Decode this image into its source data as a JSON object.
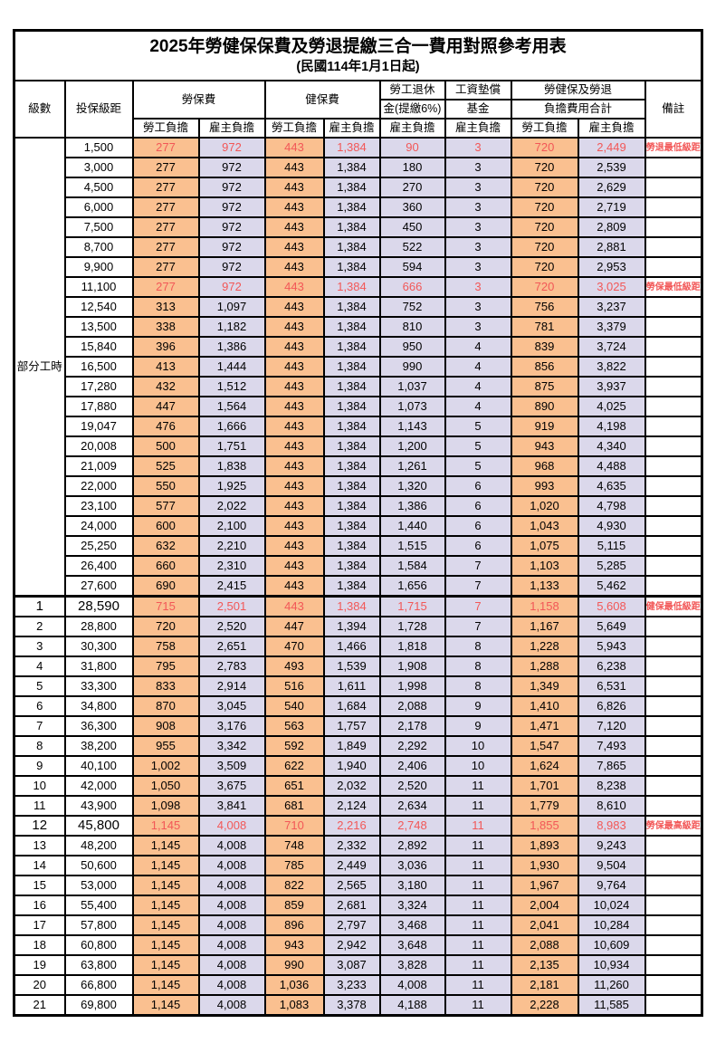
{
  "title": "2025年勞健保保費及勞退提繳三合一費用對照參考用表",
  "subtitle": "(民國114年1月1日起)",
  "columns": {
    "level": "級數",
    "bracket": "投保級距",
    "labor_fee": "勞保費",
    "health_fee": "健保費",
    "pension_line1": "勞工退休",
    "pension_line2": "金(提繳6%)",
    "wage_fund_line1": "工資墊償",
    "wage_fund_line2": "基金",
    "total_line1": "勞健保及勞退",
    "total_line2": "負擔費用合計",
    "remark": "備註",
    "employee_label": "勞工負擔",
    "employer_label": "雇主負擔"
  },
  "part_time_label": "部分工時",
  "colors": {
    "employee_bg": "#FAC090",
    "employer_bg": "#DBD8EB",
    "highlight_text": "#F25757"
  },
  "rows": [
    {
      "level": "",
      "bracket": "1,500",
      "values": [
        "277",
        "972",
        "443",
        "1,384",
        "90",
        "3",
        "720",
        "2,449"
      ],
      "remark": "勞退最低級距",
      "highlight": true,
      "emphasis": false
    },
    {
      "level": "",
      "bracket": "3,000",
      "values": [
        "277",
        "972",
        "443",
        "1,384",
        "180",
        "3",
        "720",
        "2,539"
      ],
      "remark": "",
      "highlight": false,
      "emphasis": false
    },
    {
      "level": "",
      "bracket": "4,500",
      "values": [
        "277",
        "972",
        "443",
        "1,384",
        "270",
        "3",
        "720",
        "2,629"
      ],
      "remark": "",
      "highlight": false,
      "emphasis": false
    },
    {
      "level": "",
      "bracket": "6,000",
      "values": [
        "277",
        "972",
        "443",
        "1,384",
        "360",
        "3",
        "720",
        "2,719"
      ],
      "remark": "",
      "highlight": false,
      "emphasis": false
    },
    {
      "level": "",
      "bracket": "7,500",
      "values": [
        "277",
        "972",
        "443",
        "1,384",
        "450",
        "3",
        "720",
        "2,809"
      ],
      "remark": "",
      "highlight": false,
      "emphasis": false
    },
    {
      "level": "",
      "bracket": "8,700",
      "values": [
        "277",
        "972",
        "443",
        "1,384",
        "522",
        "3",
        "720",
        "2,881"
      ],
      "remark": "",
      "highlight": false,
      "emphasis": false
    },
    {
      "level": "",
      "bracket": "9,900",
      "values": [
        "277",
        "972",
        "443",
        "1,384",
        "594",
        "3",
        "720",
        "2,953"
      ],
      "remark": "",
      "highlight": false,
      "emphasis": false
    },
    {
      "level": "",
      "bracket": "11,100",
      "values": [
        "277",
        "972",
        "443",
        "1,384",
        "666",
        "3",
        "720",
        "3,025"
      ],
      "remark": "勞保最低級距",
      "highlight": true,
      "emphasis": false
    },
    {
      "level": "",
      "bracket": "12,540",
      "values": [
        "313",
        "1,097",
        "443",
        "1,384",
        "752",
        "3",
        "756",
        "3,237"
      ],
      "remark": "",
      "highlight": false,
      "emphasis": false
    },
    {
      "level": "",
      "bracket": "13,500",
      "values": [
        "338",
        "1,182",
        "443",
        "1,384",
        "810",
        "3",
        "781",
        "3,379"
      ],
      "remark": "",
      "highlight": false,
      "emphasis": false
    },
    {
      "level": "",
      "bracket": "15,840",
      "values": [
        "396",
        "1,386",
        "443",
        "1,384",
        "950",
        "4",
        "839",
        "3,724"
      ],
      "remark": "",
      "highlight": false,
      "emphasis": false
    },
    {
      "level": "",
      "bracket": "16,500",
      "values": [
        "413",
        "1,444",
        "443",
        "1,384",
        "990",
        "4",
        "856",
        "3,822"
      ],
      "remark": "",
      "highlight": false,
      "emphasis": false
    },
    {
      "level": "",
      "bracket": "17,280",
      "values": [
        "432",
        "1,512",
        "443",
        "1,384",
        "1,037",
        "4",
        "875",
        "3,937"
      ],
      "remark": "",
      "highlight": false,
      "emphasis": false
    },
    {
      "level": "",
      "bracket": "17,880",
      "values": [
        "447",
        "1,564",
        "443",
        "1,384",
        "1,073",
        "4",
        "890",
        "4,025"
      ],
      "remark": "",
      "highlight": false,
      "emphasis": false
    },
    {
      "level": "",
      "bracket": "19,047",
      "values": [
        "476",
        "1,666",
        "443",
        "1,384",
        "1,143",
        "5",
        "919",
        "4,198"
      ],
      "remark": "",
      "highlight": false,
      "emphasis": false
    },
    {
      "level": "",
      "bracket": "20,008",
      "values": [
        "500",
        "1,751",
        "443",
        "1,384",
        "1,200",
        "5",
        "943",
        "4,340"
      ],
      "remark": "",
      "highlight": false,
      "emphasis": false
    },
    {
      "level": "",
      "bracket": "21,009",
      "values": [
        "525",
        "1,838",
        "443",
        "1,384",
        "1,261",
        "5",
        "968",
        "4,488"
      ],
      "remark": "",
      "highlight": false,
      "emphasis": false
    },
    {
      "level": "",
      "bracket": "22,000",
      "values": [
        "550",
        "1,925",
        "443",
        "1,384",
        "1,320",
        "6",
        "993",
        "4,635"
      ],
      "remark": "",
      "highlight": false,
      "emphasis": false
    },
    {
      "level": "",
      "bracket": "23,100",
      "values": [
        "577",
        "2,022",
        "443",
        "1,384",
        "1,386",
        "6",
        "1,020",
        "4,798"
      ],
      "remark": "",
      "highlight": false,
      "emphasis": false
    },
    {
      "level": "",
      "bracket": "24,000",
      "values": [
        "600",
        "2,100",
        "443",
        "1,384",
        "1,440",
        "6",
        "1,043",
        "4,930"
      ],
      "remark": "",
      "highlight": false,
      "emphasis": false
    },
    {
      "level": "",
      "bracket": "25,250",
      "values": [
        "632",
        "2,210",
        "443",
        "1,384",
        "1,515",
        "6",
        "1,075",
        "5,115"
      ],
      "remark": "",
      "highlight": false,
      "emphasis": false
    },
    {
      "level": "",
      "bracket": "26,400",
      "values": [
        "660",
        "2,310",
        "443",
        "1,384",
        "1,584",
        "7",
        "1,103",
        "5,285"
      ],
      "remark": "",
      "highlight": false,
      "emphasis": false
    },
    {
      "level": "",
      "bracket": "27,600",
      "values": [
        "690",
        "2,415",
        "443",
        "1,384",
        "1,656",
        "7",
        "1,133",
        "5,462"
      ],
      "remark": "",
      "highlight": false,
      "emphasis": false
    },
    {
      "level": "1",
      "bracket": "28,590",
      "values": [
        "715",
        "2,501",
        "443",
        "1,384",
        "1,715",
        "7",
        "1,158",
        "5,608"
      ],
      "remark": "健保最低級距",
      "highlight": true,
      "emphasis": true
    },
    {
      "level": "2",
      "bracket": "28,800",
      "values": [
        "720",
        "2,520",
        "447",
        "1,394",
        "1,728",
        "7",
        "1,167",
        "5,649"
      ],
      "remark": "",
      "highlight": false,
      "emphasis": false
    },
    {
      "level": "3",
      "bracket": "30,300",
      "values": [
        "758",
        "2,651",
        "470",
        "1,466",
        "1,818",
        "8",
        "1,228",
        "5,943"
      ],
      "remark": "",
      "highlight": false,
      "emphasis": false
    },
    {
      "level": "4",
      "bracket": "31,800",
      "values": [
        "795",
        "2,783",
        "493",
        "1,539",
        "1,908",
        "8",
        "1,288",
        "6,238"
      ],
      "remark": "",
      "highlight": false,
      "emphasis": false
    },
    {
      "level": "5",
      "bracket": "33,300",
      "values": [
        "833",
        "2,914",
        "516",
        "1,611",
        "1,998",
        "8",
        "1,349",
        "6,531"
      ],
      "remark": "",
      "highlight": false,
      "emphasis": false
    },
    {
      "level": "6",
      "bracket": "34,800",
      "values": [
        "870",
        "3,045",
        "540",
        "1,684",
        "2,088",
        "9",
        "1,410",
        "6,826"
      ],
      "remark": "",
      "highlight": false,
      "emphasis": false
    },
    {
      "level": "7",
      "bracket": "36,300",
      "values": [
        "908",
        "3,176",
        "563",
        "1,757",
        "2,178",
        "9",
        "1,471",
        "7,120"
      ],
      "remark": "",
      "highlight": false,
      "emphasis": false
    },
    {
      "level": "8",
      "bracket": "38,200",
      "values": [
        "955",
        "3,342",
        "592",
        "1,849",
        "2,292",
        "10",
        "1,547",
        "7,493"
      ],
      "remark": "",
      "highlight": false,
      "emphasis": false
    },
    {
      "level": "9",
      "bracket": "40,100",
      "values": [
        "1,002",
        "3,509",
        "622",
        "1,940",
        "2,406",
        "10",
        "1,624",
        "7,865"
      ],
      "remark": "",
      "highlight": false,
      "emphasis": false
    },
    {
      "level": "10",
      "bracket": "42,000",
      "values": [
        "1,050",
        "3,675",
        "651",
        "2,032",
        "2,520",
        "11",
        "1,701",
        "8,238"
      ],
      "remark": "",
      "highlight": false,
      "emphasis": false
    },
    {
      "level": "11",
      "bracket": "43,900",
      "values": [
        "1,098",
        "3,841",
        "681",
        "2,124",
        "2,634",
        "11",
        "1,779",
        "8,610"
      ],
      "remark": "",
      "highlight": false,
      "emphasis": false
    },
    {
      "level": "12",
      "bracket": "45,800",
      "values": [
        "1,145",
        "4,008",
        "710",
        "2,216",
        "2,748",
        "11",
        "1,855",
        "8,983"
      ],
      "remark": "勞保最高級距",
      "highlight": true,
      "emphasis": true
    },
    {
      "level": "13",
      "bracket": "48,200",
      "values": [
        "1,145",
        "4,008",
        "748",
        "2,332",
        "2,892",
        "11",
        "1,893",
        "9,243"
      ],
      "remark": "",
      "highlight": false,
      "emphasis": false
    },
    {
      "level": "14",
      "bracket": "50,600",
      "values": [
        "1,145",
        "4,008",
        "785",
        "2,449",
        "3,036",
        "11",
        "1,930",
        "9,504"
      ],
      "remark": "",
      "highlight": false,
      "emphasis": false
    },
    {
      "level": "15",
      "bracket": "53,000",
      "values": [
        "1,145",
        "4,008",
        "822",
        "2,565",
        "3,180",
        "11",
        "1,967",
        "9,764"
      ],
      "remark": "",
      "highlight": false,
      "emphasis": false
    },
    {
      "level": "16",
      "bracket": "55,400",
      "values": [
        "1,145",
        "4,008",
        "859",
        "2,681",
        "3,324",
        "11",
        "2,004",
        "10,024"
      ],
      "remark": "",
      "highlight": false,
      "emphasis": false
    },
    {
      "level": "17",
      "bracket": "57,800",
      "values": [
        "1,145",
        "4,008",
        "896",
        "2,797",
        "3,468",
        "11",
        "2,041",
        "10,284"
      ],
      "remark": "",
      "highlight": false,
      "emphasis": false
    },
    {
      "level": "18",
      "bracket": "60,800",
      "values": [
        "1,145",
        "4,008",
        "943",
        "2,942",
        "3,648",
        "11",
        "2,088",
        "10,609"
      ],
      "remark": "",
      "highlight": false,
      "emphasis": false
    },
    {
      "level": "19",
      "bracket": "63,800",
      "values": [
        "1,145",
        "4,008",
        "990",
        "3,087",
        "3,828",
        "11",
        "2,135",
        "10,934"
      ],
      "remark": "",
      "highlight": false,
      "emphasis": false
    },
    {
      "level": "20",
      "bracket": "66,800",
      "values": [
        "1,145",
        "4,008",
        "1,036",
        "3,233",
        "4,008",
        "11",
        "2,181",
        "11,260"
      ],
      "remark": "",
      "highlight": false,
      "emphasis": false
    },
    {
      "level": "21",
      "bracket": "69,800",
      "values": [
        "1,145",
        "4,008",
        "1,083",
        "3,378",
        "4,188",
        "11",
        "2,228",
        "11,585"
      ],
      "remark": "",
      "highlight": false,
      "emphasis": false
    }
  ]
}
